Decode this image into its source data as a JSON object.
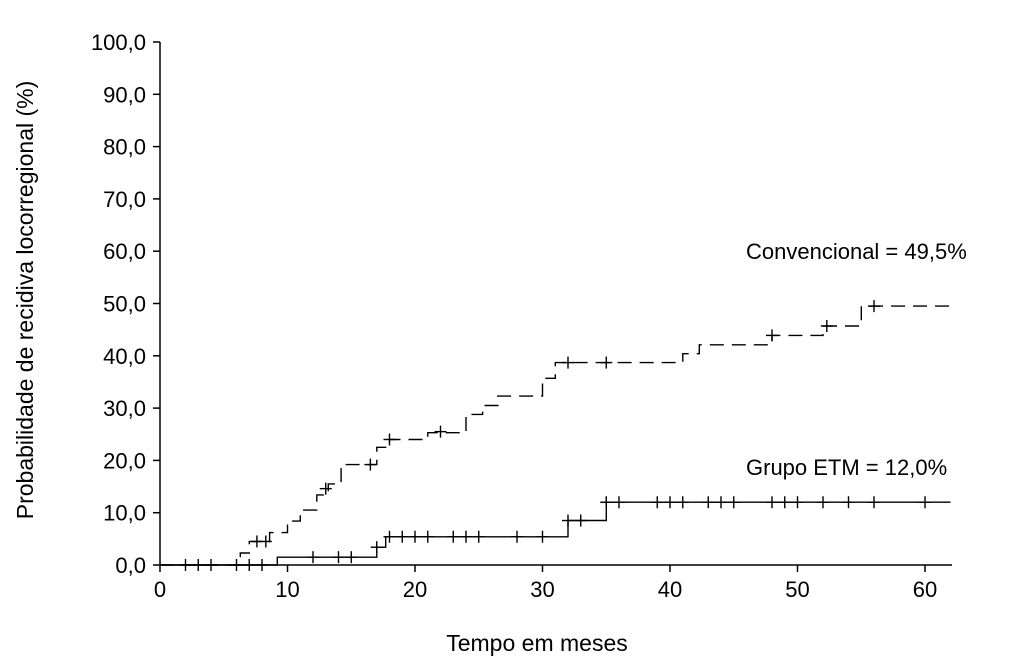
{
  "chart_data": {
    "type": "line",
    "title": "",
    "xlabel": "Tempo em meses",
    "ylabel": "Probabilidade de recidiva locorregional (%)",
    "xlim": [
      0,
      62
    ],
    "ylim": [
      0,
      100
    ],
    "xticks": [
      "0",
      "10",
      "20",
      "30",
      "40",
      "50",
      "60"
    ],
    "yticks": [
      "0,0",
      "10,0",
      "20,0",
      "30,0",
      "40,0",
      "50,0",
      "60,0",
      "70,0",
      "80,0",
      "90,0",
      "100,0"
    ],
    "grid": false,
    "series": [
      {
        "style": "dashed",
        "steps": [
          [
            0,
            0
          ],
          [
            6.3,
            0
          ],
          [
            6.3,
            2.3
          ],
          [
            7,
            2.3
          ],
          [
            7,
            4.5
          ],
          [
            8.6,
            4.5
          ],
          [
            8.6,
            6.2
          ],
          [
            10,
            6.2
          ],
          [
            10,
            8.4
          ],
          [
            11,
            8.4
          ],
          [
            11,
            10.5
          ],
          [
            12.3,
            10.5
          ],
          [
            12.3,
            13.4
          ],
          [
            13.2,
            13.4
          ],
          [
            13.2,
            15.5
          ],
          [
            14.2,
            15.5
          ],
          [
            14.2,
            19.2
          ],
          [
            17,
            19.2
          ],
          [
            17,
            22.5
          ],
          [
            18,
            22.5
          ],
          [
            18,
            24
          ],
          [
            21,
            24
          ],
          [
            21,
            25.3
          ],
          [
            24,
            25.3
          ],
          [
            24,
            28.8
          ],
          [
            25.3,
            28.8
          ],
          [
            25.3,
            30.5
          ],
          [
            26.5,
            30.5
          ],
          [
            26.5,
            32.3
          ],
          [
            30,
            32.3
          ],
          [
            30,
            35.7
          ],
          [
            31,
            35.7
          ],
          [
            31,
            38.7
          ],
          [
            41,
            38.7
          ],
          [
            41,
            40.4
          ],
          [
            42.3,
            40.4
          ],
          [
            42.3,
            42.1
          ],
          [
            48,
            42.1
          ],
          [
            48,
            43.9
          ],
          [
            52,
            43.9
          ],
          [
            52,
            45.7
          ],
          [
            55,
            45.7
          ],
          [
            55,
            49.5
          ],
          [
            62,
            49.5
          ]
        ],
        "censors": [
          [
            7.6,
            4.5
          ],
          [
            8.3,
            4.5
          ],
          [
            13,
            14.6
          ],
          [
            16.5,
            19.2
          ],
          [
            18,
            24
          ],
          [
            22,
            25.5
          ],
          [
            32,
            38.7
          ],
          [
            35,
            38.7
          ],
          [
            48,
            43.9
          ],
          [
            52.3,
            45.7
          ],
          [
            56,
            49.5
          ]
        ]
      },
      {
        "style": "solid",
        "steps": [
          [
            0,
            0
          ],
          [
            9.2,
            0
          ],
          [
            9.2,
            1.5
          ],
          [
            17,
            1.5
          ],
          [
            17,
            3.4
          ],
          [
            17.7,
            3.4
          ],
          [
            17.7,
            5.4
          ],
          [
            32,
            5.4
          ],
          [
            32,
            8.5
          ],
          [
            35,
            8.5
          ],
          [
            35,
            12
          ],
          [
            62,
            12
          ]
        ],
        "censors": [
          [
            2,
            0
          ],
          [
            3,
            0
          ],
          [
            4,
            0
          ],
          [
            6,
            0
          ],
          [
            7,
            0
          ],
          [
            8,
            0
          ],
          [
            12,
            1.5
          ],
          [
            14,
            1.5
          ],
          [
            15,
            1.5
          ],
          [
            17,
            3.4
          ],
          [
            18,
            5.4
          ],
          [
            19,
            5.4
          ],
          [
            20,
            5.4
          ],
          [
            21,
            5.4
          ],
          [
            23,
            5.4
          ],
          [
            24,
            5.4
          ],
          [
            25,
            5.4
          ],
          [
            28,
            5.4
          ],
          [
            30,
            5.4
          ],
          [
            32,
            8.5
          ],
          [
            33,
            8.5
          ],
          [
            35,
            12
          ],
          [
            36,
            12
          ],
          [
            39,
            12
          ],
          [
            40,
            12
          ],
          [
            41,
            12
          ],
          [
            43,
            12
          ],
          [
            44,
            12
          ],
          [
            45,
            12
          ],
          [
            48,
            12
          ],
          [
            49,
            12
          ],
          [
            50,
            12
          ],
          [
            52,
            12
          ],
          [
            54,
            12
          ],
          [
            56,
            12
          ],
          [
            60,
            12
          ]
        ]
      }
    ],
    "annotations": [
      "Convencional = 49,5%",
      "Grupo ETM = 12,0%"
    ]
  }
}
